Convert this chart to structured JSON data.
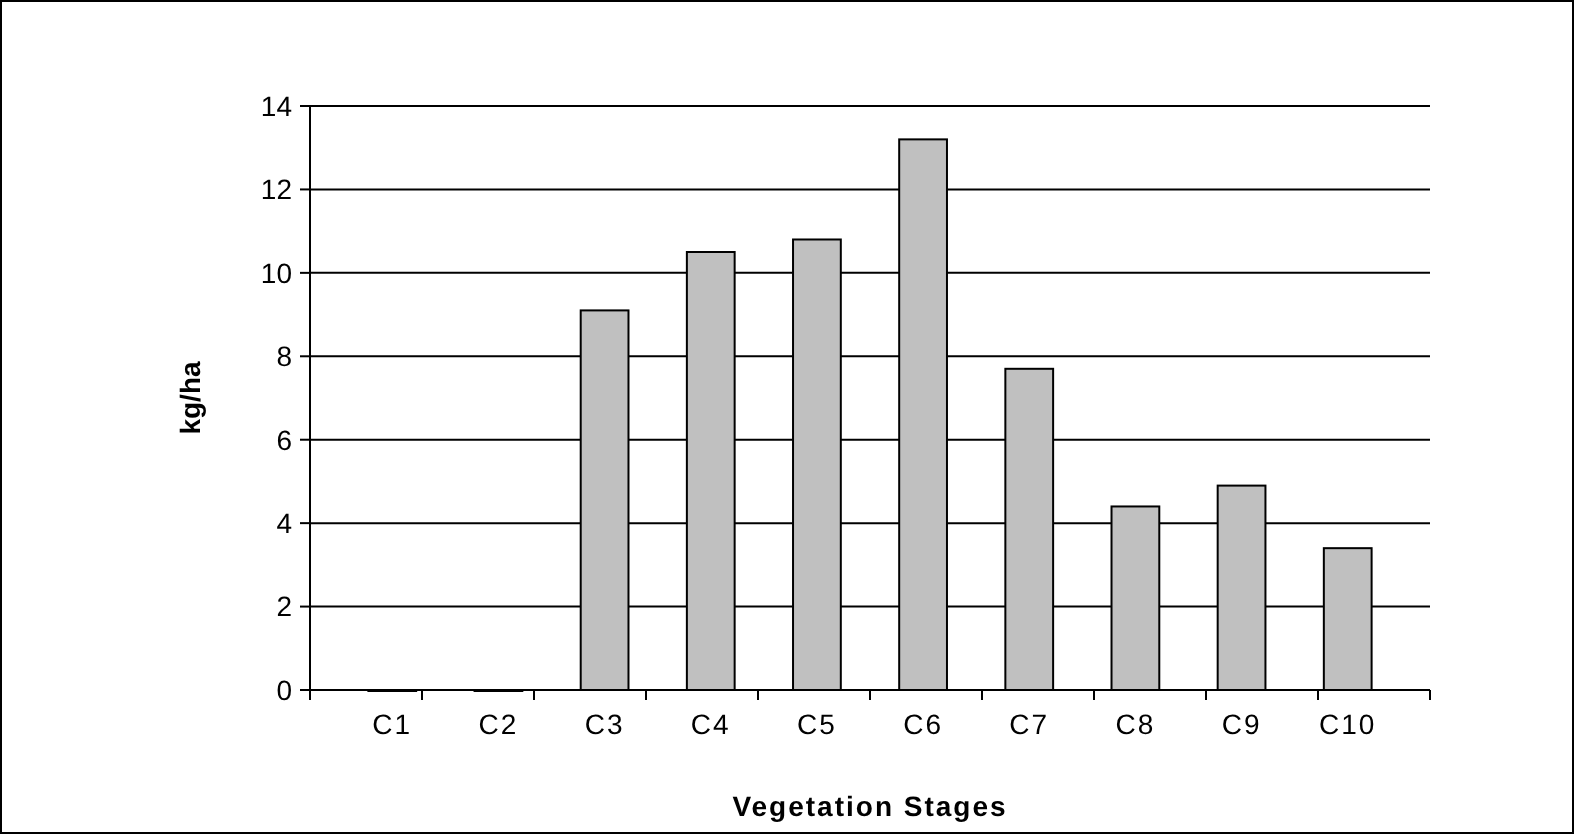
{
  "chart_data": {
    "type": "bar",
    "xlabel": "Vegetation Stages",
    "ylabel": "kg/ha",
    "categories": [
      "C1",
      "C2",
      "C3",
      "C4",
      "C5",
      "C6",
      "C7",
      "C8",
      "C9",
      "C10"
    ],
    "values": [
      0,
      0,
      9.1,
      10.5,
      10.8,
      13.2,
      7.7,
      4.4,
      4.9,
      3.4
    ],
    "color": "#c0c0c0",
    "ylim": [
      0,
      14
    ],
    "yticks": [
      0,
      2,
      4,
      6,
      8,
      10,
      12,
      14
    ],
    "grid": "y"
  }
}
